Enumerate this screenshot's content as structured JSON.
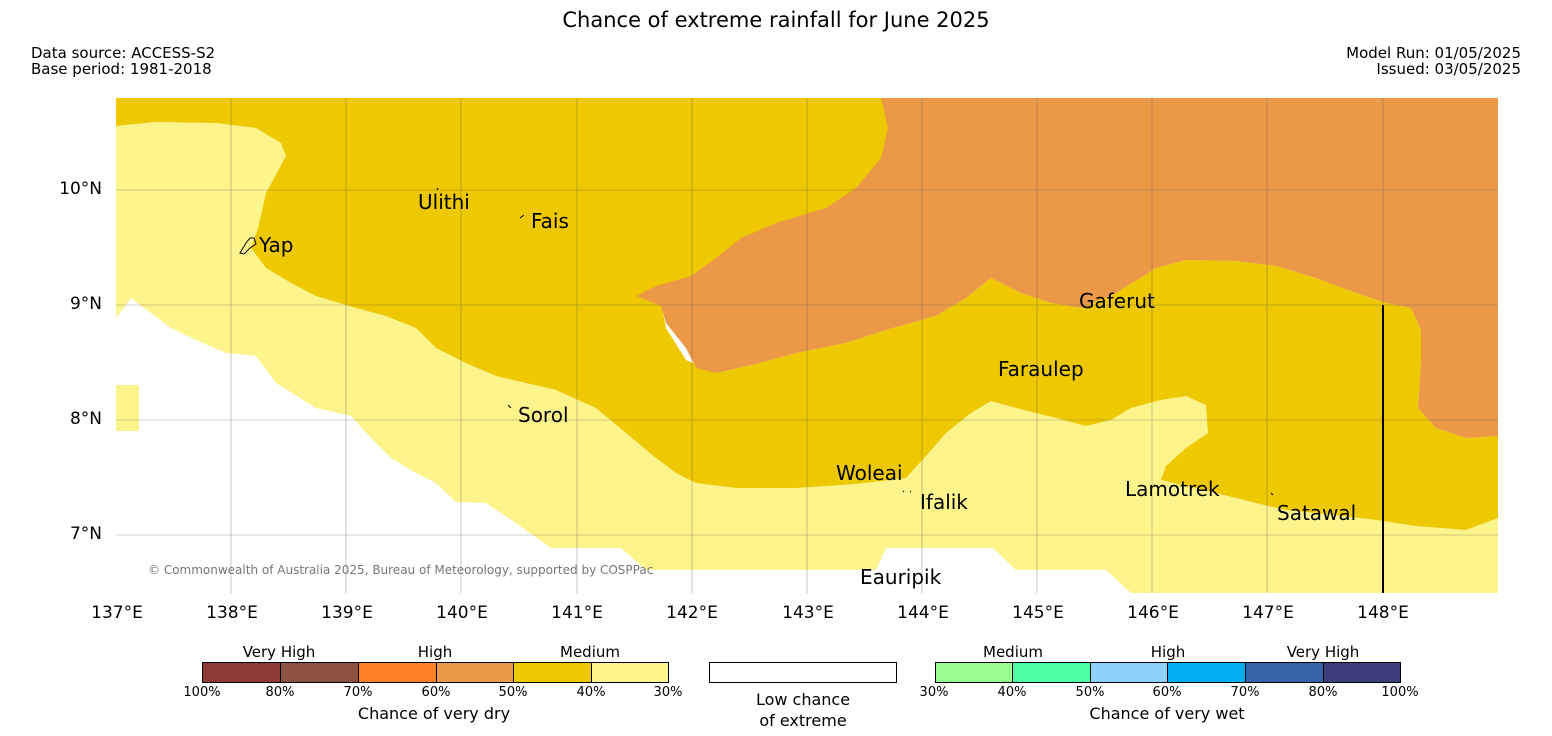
{
  "header": {
    "title": "Chance of extreme rainfall for June 2025",
    "data_source": "Data source: ACCESS-S2",
    "base_period": "Base period: 1981-2018",
    "model_run": "Model Run: 01/05/2025",
    "issued": "Issued: 03/05/2025"
  },
  "map": {
    "lon_range": [
      137.0,
      149.0
    ],
    "lat_range": [
      6.5,
      10.8
    ],
    "lat_labels": [
      "10°N",
      "9°N",
      "8°N",
      "7°N"
    ],
    "lon_labels": [
      "137°E",
      "138°E",
      "139°E",
      "140°E",
      "141°E",
      "142°E",
      "143°E",
      "144°E",
      "145°E",
      "146°E",
      "147°E",
      "148°E"
    ],
    "places": [
      {
        "name": "Ulithi"
      },
      {
        "name": "Fais"
      },
      {
        "name": "Yap"
      },
      {
        "name": "Gaferut"
      },
      {
        "name": "Faraulep"
      },
      {
        "name": "Sorol"
      },
      {
        "name": "Woleai"
      },
      {
        "name": "Ifalik"
      },
      {
        "name": "Lamotrek"
      },
      {
        "name": "Satawal"
      },
      {
        "name": "Eauripik"
      }
    ],
    "copyright": "© Commonwealth of Australia 2025, Bureau of Meteorology, supported by COSPPac",
    "colors": {
      "dry_30_40": "#fdf58c",
      "dry_40_50": "#eec800",
      "dry_50_60": "#eb9946",
      "low": "#ffffff"
    }
  },
  "legend": {
    "dry": {
      "groups": [
        "Very High",
        "High",
        "Medium"
      ],
      "ticks": [
        "100%",
        "80%",
        "70%",
        "60%",
        "50%",
        "40%",
        "30%"
      ],
      "colors": [
        "#8b3a35",
        "#8d5140",
        "#ff8127",
        "#eb9a4a",
        "#eec800",
        "#fdf58c"
      ],
      "caption": "Chance of very dry"
    },
    "low": {
      "caption_line1": "Low chance",
      "caption_line2": "of extreme"
    },
    "wet": {
      "groups": [
        "Medium",
        "High",
        "Very High"
      ],
      "ticks": [
        "30%",
        "40%",
        "50%",
        "60%",
        "70%",
        "80%",
        "100%"
      ],
      "colors": [
        "#9bff8f",
        "#4fffa6",
        "#8ed1fa",
        "#00b0f0",
        "#3565a8",
        "#3c3f7c"
      ],
      "caption": "Chance of very wet"
    }
  }
}
